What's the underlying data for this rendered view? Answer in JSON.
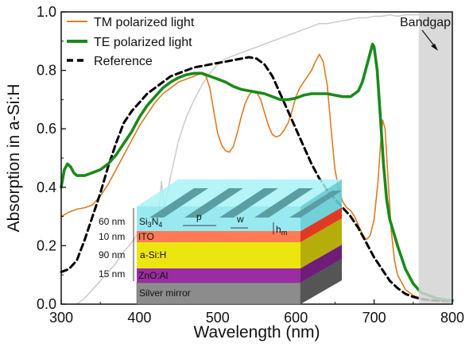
{
  "chart_data": {
    "type": "line",
    "title": "",
    "xlabel": "Wavelength (nm)",
    "ylabel": "Absorption in a-Si:H",
    "xlim": [
      300,
      800
    ],
    "ylim": [
      0.0,
      1.0
    ],
    "xticks": [
      300,
      400,
      500,
      600,
      700,
      800
    ],
    "yticks": [
      "0.0",
      "0.2",
      "0.4",
      "0.6",
      "0.8",
      "1.0"
    ],
    "grid": false,
    "legend_position": "top-left",
    "series": [
      {
        "name": "TM polarized light",
        "color": "#e07b22",
        "x": [
          300,
          310,
          320,
          330,
          340,
          350,
          360,
          370,
          380,
          390,
          400,
          410,
          420,
          430,
          440,
          450,
          460,
          470,
          478,
          485,
          490,
          495,
          500,
          505,
          510,
          515,
          520,
          525,
          530,
          535,
          540,
          545,
          550,
          555,
          560,
          565,
          570,
          575,
          580,
          585,
          590,
          595,
          600,
          605,
          610,
          615,
          620,
          625,
          630,
          635,
          640,
          645,
          650,
          655,
          660,
          665,
          670,
          675,
          680,
          685,
          690,
          695,
          700,
          705,
          708,
          711,
          714,
          718,
          722,
          726,
          730,
          740,
          750,
          760,
          770,
          780,
          790,
          800
        ],
        "y": [
          0.3,
          0.315,
          0.325,
          0.33,
          0.34,
          0.37,
          0.41,
          0.46,
          0.51,
          0.56,
          0.61,
          0.65,
          0.69,
          0.72,
          0.74,
          0.76,
          0.77,
          0.78,
          0.79,
          0.78,
          0.74,
          0.66,
          0.585,
          0.545,
          0.525,
          0.52,
          0.54,
          0.585,
          0.64,
          0.685,
          0.715,
          0.73,
          0.725,
          0.7,
          0.655,
          0.61,
          0.58,
          0.572,
          0.578,
          0.595,
          0.62,
          0.66,
          0.71,
          0.74,
          0.76,
          0.78,
          0.8,
          0.83,
          0.855,
          0.83,
          0.75,
          0.6,
          0.46,
          0.39,
          0.35,
          0.33,
          0.32,
          0.3,
          0.27,
          0.24,
          0.22,
          0.235,
          0.29,
          0.42,
          0.54,
          0.63,
          0.6,
          0.42,
          0.25,
          0.15,
          0.1,
          0.05,
          0.03,
          0.02,
          0.015,
          0.012,
          0.01,
          0.01
        ]
      },
      {
        "name": "TE polarized light",
        "color": "#1a8a1a",
        "x": [
          300,
          304,
          308,
          312,
          316,
          320,
          330,
          340,
          350,
          360,
          370,
          380,
          390,
          400,
          410,
          420,
          430,
          440,
          450,
          460,
          470,
          480,
          490,
          500,
          510,
          520,
          530,
          540,
          550,
          560,
          570,
          580,
          590,
          600,
          610,
          620,
          630,
          640,
          650,
          660,
          670,
          680,
          685,
          690,
          695,
          698,
          700,
          704,
          708,
          712,
          716,
          720,
          730,
          740,
          750,
          760,
          770,
          780,
          790,
          800
        ],
        "y": [
          0.4,
          0.46,
          0.48,
          0.47,
          0.45,
          0.44,
          0.44,
          0.45,
          0.46,
          0.48,
          0.51,
          0.55,
          0.59,
          0.64,
          0.68,
          0.71,
          0.74,
          0.76,
          0.775,
          0.785,
          0.79,
          0.79,
          0.78,
          0.77,
          0.76,
          0.745,
          0.735,
          0.73,
          0.725,
          0.72,
          0.71,
          0.7,
          0.7,
          0.705,
          0.715,
          0.72,
          0.72,
          0.72,
          0.715,
          0.71,
          0.71,
          0.73,
          0.76,
          0.81,
          0.86,
          0.89,
          0.88,
          0.8,
          0.64,
          0.48,
          0.36,
          0.29,
          0.2,
          0.12,
          0.07,
          0.04,
          0.03,
          0.02,
          0.015,
          0.012
        ]
      },
      {
        "name": "Reference",
        "color": "#000000",
        "x": [
          300,
          310,
          320,
          330,
          340,
          350,
          360,
          370,
          380,
          390,
          400,
          410,
          420,
          430,
          440,
          450,
          460,
          470,
          480,
          490,
          500,
          510,
          520,
          530,
          540,
          550,
          560,
          570,
          580,
          590,
          600,
          610,
          620,
          630,
          640,
          650,
          660,
          670,
          680,
          690,
          700,
          710,
          720,
          730,
          740,
          750,
          760,
          770,
          780,
          790,
          800
        ],
        "y": [
          0.11,
          0.12,
          0.15,
          0.22,
          0.3,
          0.38,
          0.47,
          0.55,
          0.62,
          0.66,
          0.69,
          0.72,
          0.74,
          0.76,
          0.78,
          0.79,
          0.8,
          0.81,
          0.815,
          0.82,
          0.825,
          0.83,
          0.835,
          0.84,
          0.845,
          0.84,
          0.82,
          0.78,
          0.72,
          0.66,
          0.6,
          0.54,
          0.48,
          0.43,
          0.39,
          0.36,
          0.33,
          0.3,
          0.26,
          0.21,
          0.16,
          0.12,
          0.08,
          0.055,
          0.035,
          0.025,
          0.018,
          0.014,
          0.012,
          0.011,
          0.01
        ]
      },
      {
        "name": "",
        "color": "#c8c8c8",
        "x": [
          320,
          330,
          340,
          350,
          360,
          370,
          380,
          390,
          400,
          410,
          420,
          425,
          428,
          432,
          435,
          440,
          445,
          450,
          460,
          470,
          480,
          490,
          500,
          510,
          520,
          530,
          540,
          550,
          560,
          570,
          580,
          590,
          600,
          610,
          620,
          630,
          640,
          650,
          660,
          670,
          680,
          690,
          700,
          710,
          720,
          730,
          740,
          750,
          760,
          770,
          780,
          790,
          800
        ],
        "y": [
          0.0,
          0.02,
          0.05,
          0.08,
          0.11,
          0.14,
          0.18,
          0.21,
          0.25,
          0.27,
          0.29,
          0.31,
          0.42,
          0.33,
          0.37,
          0.44,
          0.5,
          0.56,
          0.64,
          0.7,
          0.75,
          0.79,
          0.82,
          0.84,
          0.85,
          0.86,
          0.87,
          0.88,
          0.89,
          0.9,
          0.91,
          0.92,
          0.93,
          0.94,
          0.95,
          0.96,
          0.96,
          0.965,
          0.97,
          0.975,
          0.98,
          0.98,
          0.985,
          0.985,
          0.99,
          0.985,
          0.99,
          0.99,
          0.99,
          0.99,
          0.98,
          0.98,
          0.99
        ]
      }
    ],
    "bandgap_region": {
      "x_start": 757,
      "x_end": 800,
      "label": "Bandgap",
      "color": "#d3d3d3"
    },
    "inset": {
      "layers": [
        {
          "thickness": "60 nm",
          "material": "Si3N4",
          "color": "#8ee7ef"
        },
        {
          "thickness": "10 nm",
          "material": "ITO",
          "color": "#ff7a55"
        },
        {
          "thickness": "90 nm",
          "material": "a-Si:H",
          "color": "#ede510"
        },
        {
          "thickness": "15 nm",
          "material": "ZnO:Al",
          "color": "#9a2da3"
        },
        {
          "thickness": "",
          "material": "Silver mirror",
          "color": "#8c8c8c"
        }
      ],
      "dimension_labels": {
        "period": "p",
        "width": "w",
        "height": "h",
        "height_sub": "m"
      },
      "si3n4_parts": {
        "main": "Si",
        "sub1": "3",
        "mid": "N",
        "sub2": "4"
      }
    }
  }
}
